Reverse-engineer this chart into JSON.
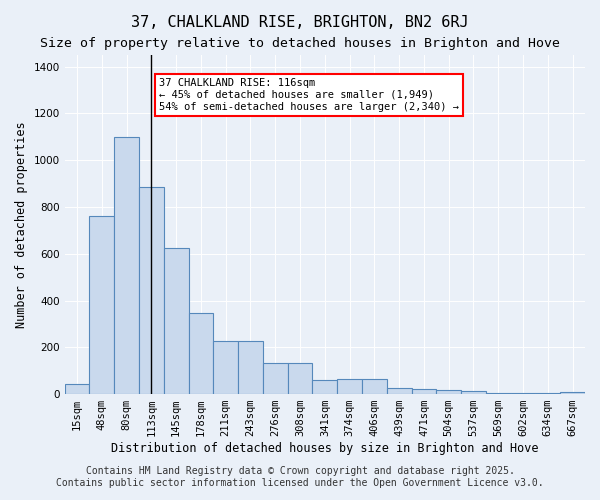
{
  "title": "37, CHALKLAND RISE, BRIGHTON, BN2 6RJ",
  "subtitle": "Size of property relative to detached houses in Brighton and Hove",
  "xlabel": "Distribution of detached houses by size in Brighton and Hove",
  "ylabel": "Number of detached properties",
  "categories": [
    "15sqm",
    "48sqm",
    "80sqm",
    "113sqm",
    "145sqm",
    "178sqm",
    "211sqm",
    "243sqm",
    "276sqm",
    "308sqm",
    "341sqm",
    "374sqm",
    "406sqm",
    "439sqm",
    "471sqm",
    "504sqm",
    "537sqm",
    "569sqm",
    "602sqm",
    "634sqm",
    "667sqm"
  ],
  "values": [
    45,
    760,
    1100,
    885,
    625,
    345,
    228,
    228,
    135,
    135,
    62,
    65,
    65,
    28,
    22,
    18,
    15,
    5,
    5,
    5,
    10
  ],
  "bar_color": "#c9d9ed",
  "bar_edge_color": "#5588bb",
  "vline_x_index": 3,
  "vline_color": "black",
  "annotation_text": "37 CHALKLAND RISE: 116sqm\n← 45% of detached houses are smaller (1,949)\n54% of semi-detached houses are larger (2,340) →",
  "annotation_box_color": "white",
  "annotation_box_edge_color": "red",
  "ylim": [
    0,
    1450
  ],
  "yticks": [
    0,
    200,
    400,
    600,
    800,
    1000,
    1200,
    1400
  ],
  "background_color": "#eaf0f8",
  "footer_line1": "Contains HM Land Registry data © Crown copyright and database right 2025.",
  "footer_line2": "Contains public sector information licensed under the Open Government Licence v3.0.",
  "title_fontsize": 11,
  "subtitle_fontsize": 9.5,
  "xlabel_fontsize": 8.5,
  "ylabel_fontsize": 8.5,
  "tick_fontsize": 7.5,
  "annotation_fontsize": 7.5,
  "footer_fontsize": 7
}
